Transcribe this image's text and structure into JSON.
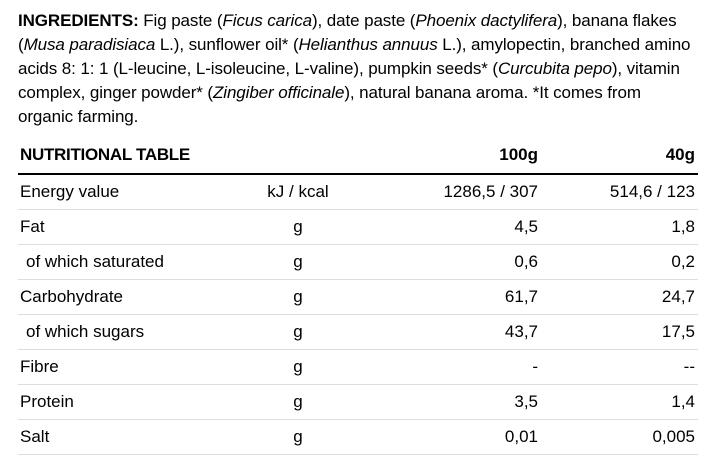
{
  "colors": {
    "text": "#000000",
    "background": "#ffffff",
    "row_divider": "#dedede",
    "header_divider": "#000000"
  },
  "ingredients": {
    "label": "INGREDIENTS:",
    "segments": [
      {
        "text": "Fig paste (",
        "style": "normal"
      },
      {
        "text": "Ficus carica",
        "style": "italic"
      },
      {
        "text": "), date paste (",
        "style": "normal"
      },
      {
        "text": "Phoenix dactylifera",
        "style": "italic"
      },
      {
        "text": "), banana flakes (",
        "style": "normal"
      },
      {
        "text": "Musa paradisiaca",
        "style": "italic"
      },
      {
        "text": " L.), sunflower oil* (",
        "style": "normal"
      },
      {
        "text": "Helianthus annuus",
        "style": "italic"
      },
      {
        "text": " L.), amylopectin, branched amino acids 8: 1: 1 (L-leucine, L-isoleucine, L-valine), pumpkin seeds* (",
        "style": "normal"
      },
      {
        "text": "Curcubita pepo",
        "style": "italic"
      },
      {
        "text": "), vitamin complex, ginger powder* (",
        "style": "normal"
      },
      {
        "text": "Zingiber officinale",
        "style": "italic"
      },
      {
        "text": "), natural banana aroma. *It comes from organic farming.",
        "style": "normal"
      }
    ]
  },
  "table": {
    "title": "NUTRITIONAL TABLE",
    "col_headers": [
      "100g",
      "40g"
    ],
    "rows": [
      {
        "label": "Energy value",
        "unit": "kJ / kcal",
        "per100": "1286,5 / 307",
        "per40": "514,6 / 123",
        "indent": false
      },
      {
        "label": "Fat",
        "unit": "g",
        "per100": "4,5",
        "per40": "1,8",
        "indent": false
      },
      {
        "label": "of which saturated",
        "unit": "g",
        "per100": "0,6",
        "per40": "0,2",
        "indent": true
      },
      {
        "label": "Carbohydrate",
        "unit": "g",
        "per100": "61,7",
        "per40": "24,7",
        "indent": false
      },
      {
        "label": "of which sugars",
        "unit": "g",
        "per100": "43,7",
        "per40": "17,5",
        "indent": true
      },
      {
        "label": "Fibre",
        "unit": "g",
        "per100": "-",
        "per40": "--",
        "indent": false
      },
      {
        "label": "Protein",
        "unit": "g",
        "per100": "3,5",
        "per40": "1,4",
        "indent": false
      },
      {
        "label": "Salt",
        "unit": "g",
        "per100": "0,01",
        "per40": "0,005",
        "indent": false
      }
    ]
  }
}
